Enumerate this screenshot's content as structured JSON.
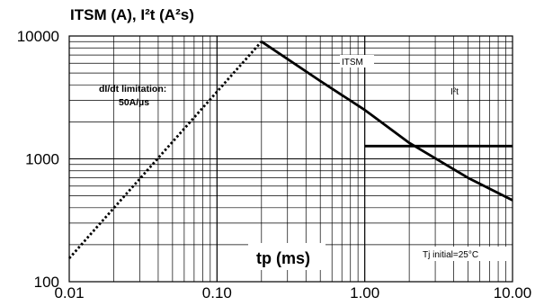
{
  "chart_data": {
    "type": "line",
    "title": "ITSM (A), I²t (A²s)",
    "xlabel": "tp (ms)",
    "ylabel": "",
    "x_scale": "log",
    "y_scale": "log",
    "xlim": [
      0.01,
      10
    ],
    "ylim": [
      100,
      10000
    ],
    "grid": true,
    "x_tick_labels": [
      "0.01",
      "0.10",
      "1.00",
      "10.00"
    ],
    "y_tick_labels": [
      "100",
      "1000",
      "10000"
    ],
    "series": [
      {
        "name": "dI/dt limitation: 50A/µs",
        "style": "dotted",
        "x": [
          0.01,
          0.2
        ],
        "y": [
          155,
          9000
        ]
      },
      {
        "name": "ITSM",
        "style": "solid",
        "x": [
          0.2,
          0.5,
          1.0,
          2.0,
          5.0,
          10.0
        ],
        "y": [
          9000,
          4300,
          2500,
          1350,
          700,
          460
        ]
      },
      {
        "name": "I²t",
        "style": "solid",
        "x": [
          1.0,
          10.0
        ],
        "y": [
          1270,
          1270
        ]
      }
    ],
    "annotations": {
      "didt_line1": "dI/dt limitation:",
      "didt_line2": "50A/µs",
      "conditions": "Tj initial=25°C"
    }
  }
}
